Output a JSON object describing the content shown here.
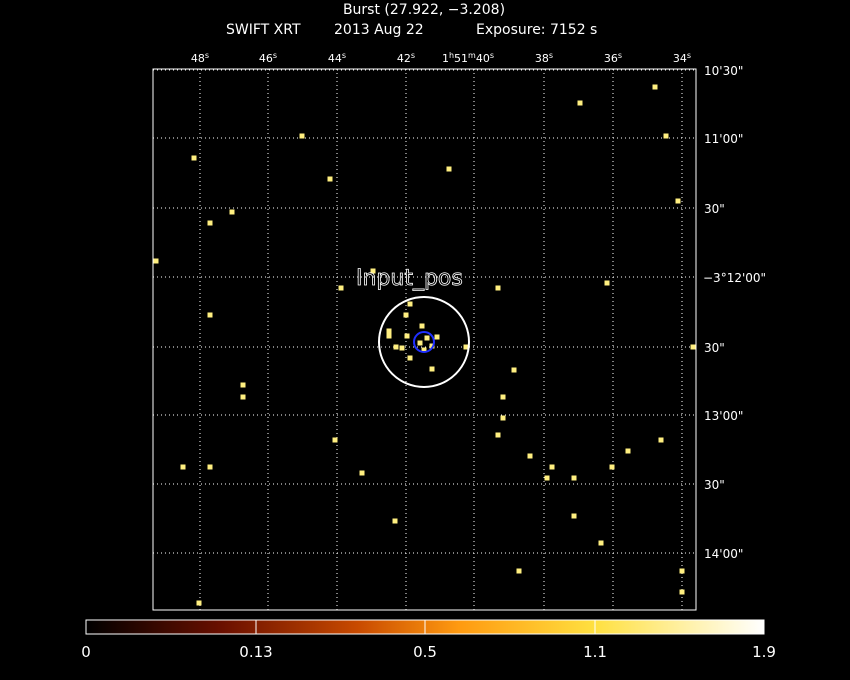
{
  "header": {
    "title": "Burst (27.922, −3.208)",
    "instrument": "SWIFT XRT",
    "date": "2013 Aug 22",
    "exposure": "Exposure: 7152 s"
  },
  "ra_labels": [
    {
      "parts": [
        {
          "text": "48"
        },
        {
          "text": "s",
          "sup": true
        }
      ]
    },
    {
      "parts": [
        {
          "text": "46"
        },
        {
          "text": "s",
          "sup": true
        }
      ]
    },
    {
      "parts": [
        {
          "text": "44"
        },
        {
          "text": "s",
          "sup": true
        }
      ]
    },
    {
      "parts": [
        {
          "text": "42"
        },
        {
          "text": "s",
          "sup": true
        }
      ]
    },
    {
      "parts": [
        {
          "text": "1"
        },
        {
          "text": "h",
          "sup": true
        },
        {
          "text": "51"
        },
        {
          "text": "m",
          "sup": true
        },
        {
          "text": "40"
        },
        {
          "text": "s",
          "sup": true
        }
      ]
    },
    {
      "parts": [
        {
          "text": "38"
        },
        {
          "text": "s",
          "sup": true
        }
      ]
    },
    {
      "parts": [
        {
          "text": "36"
        },
        {
          "text": "s",
          "sup": true
        }
      ]
    },
    {
      "parts": [
        {
          "text": "34"
        },
        {
          "text": "s",
          "sup": true
        }
      ]
    }
  ],
  "dec_labels": [
    "10'30\"",
    "11'00\"",
    "30\"",
    "−3°12'00\"",
    "30\"",
    "13'00\"",
    "30\"",
    "14'00\""
  ],
  "source_label": "Input_pos",
  "colorbar": {
    "labels": [
      "0",
      "0.13",
      "0.5",
      "1.1",
      "1.9"
    ]
  }
}
